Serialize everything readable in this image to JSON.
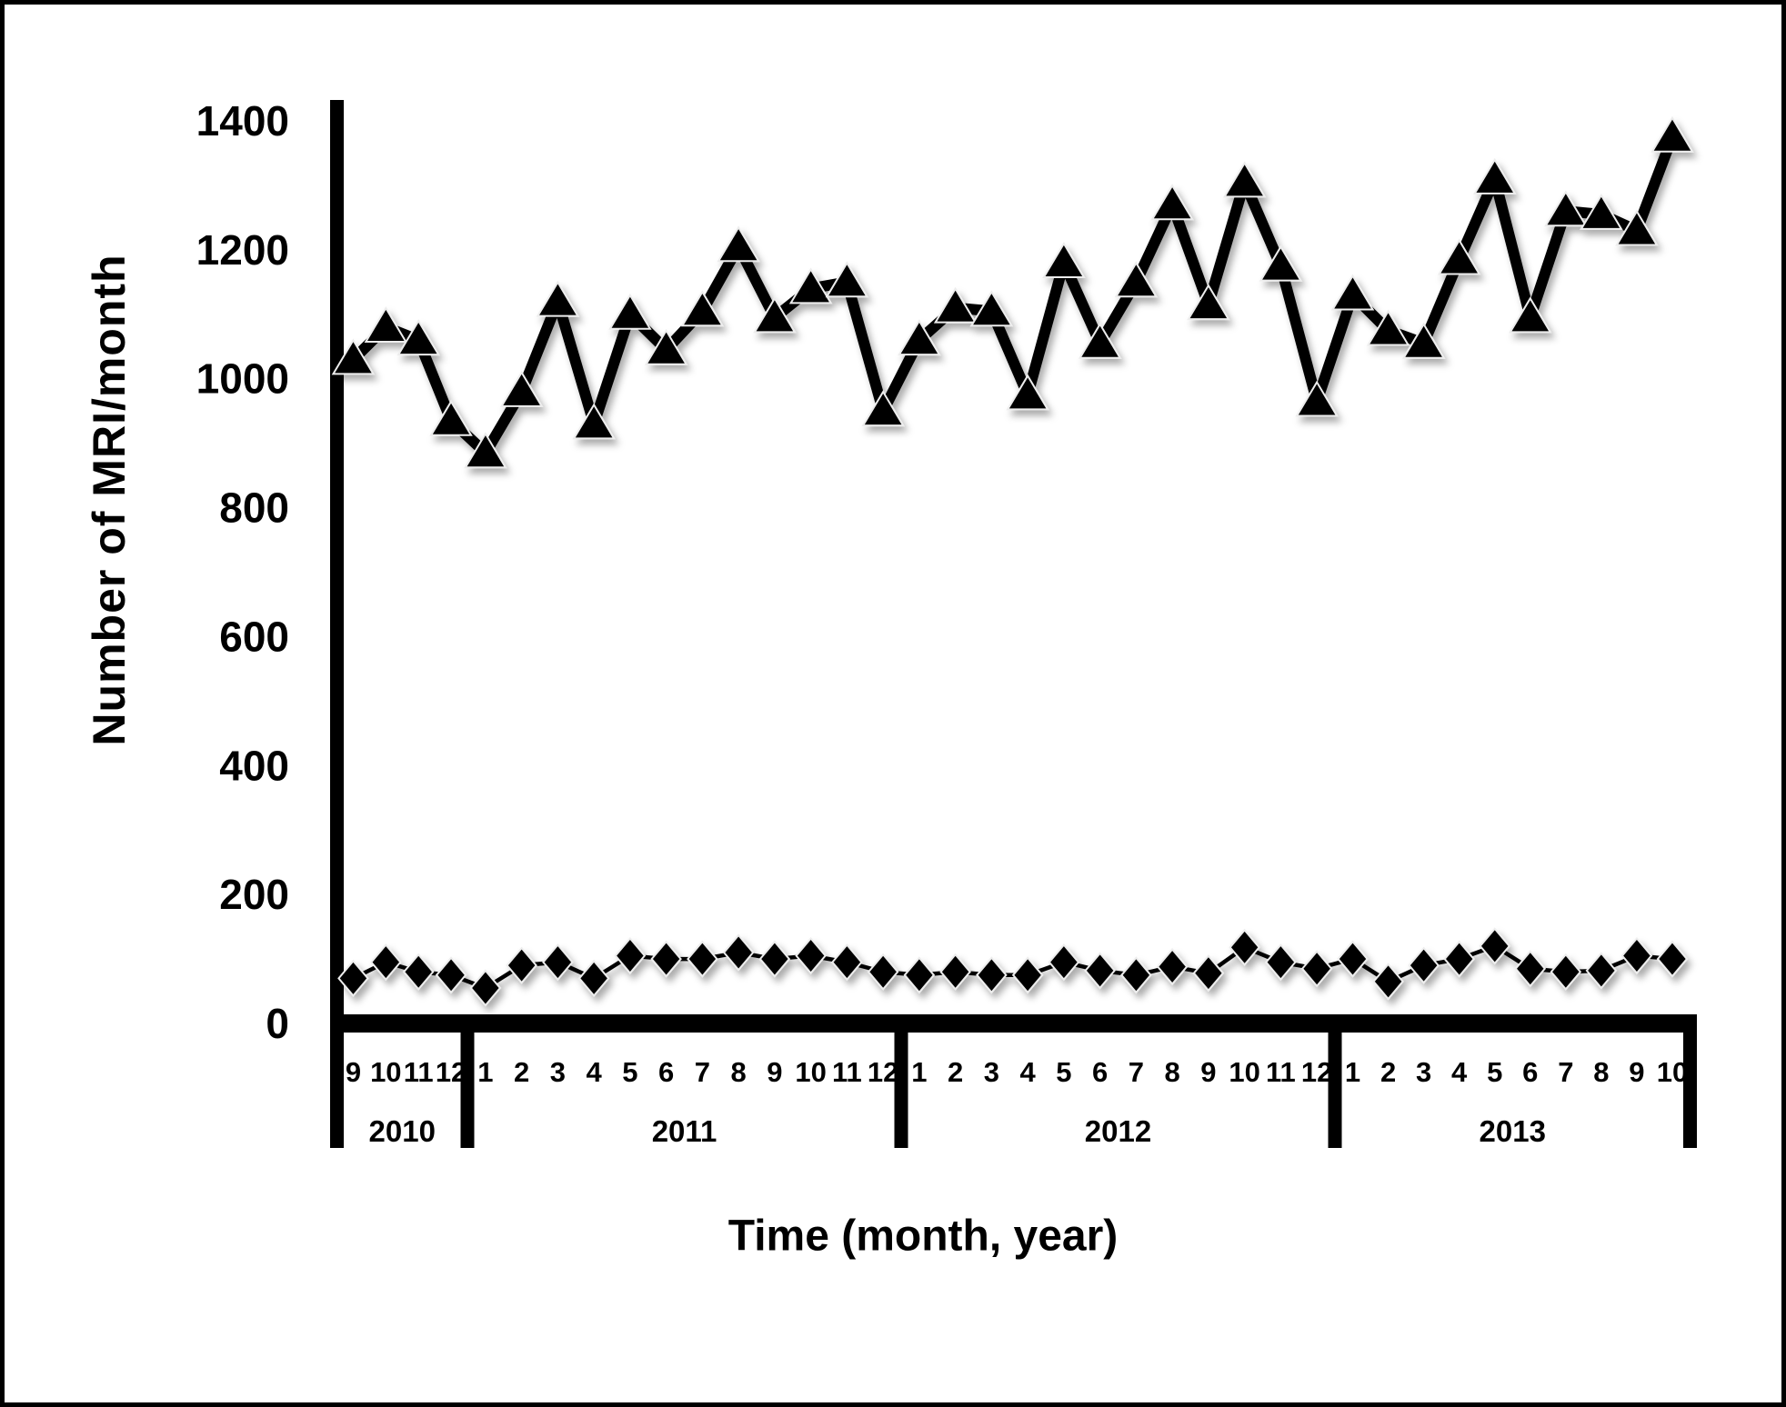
{
  "figure": {
    "y_axis_title": "Number of MRI/month",
    "x_axis_title": "Time (month, year)"
  },
  "chart_data": {
    "type": "line",
    "title": "",
    "ylabel": "Number of MRI/month",
    "xlabel": "Time (month, year)",
    "ylim": [
      0,
      1400
    ],
    "y_ticks": [
      1400,
      1200,
      1000,
      800,
      600,
      400,
      200,
      0
    ],
    "grid": false,
    "legend": "none",
    "x_groups": [
      {
        "year": "2010",
        "months": [
          "9",
          "10",
          "11",
          "12"
        ]
      },
      {
        "year": "2011",
        "months": [
          "1",
          "2",
          "3",
          "4",
          "5",
          "6",
          "7",
          "8",
          "9",
          "10",
          "11",
          "12"
        ]
      },
      {
        "year": "2012",
        "months": [
          "1",
          "2",
          "3",
          "4",
          "5",
          "6",
          "7",
          "8",
          "9",
          "10",
          "11",
          "12"
        ]
      },
      {
        "year": "2013",
        "months": [
          "1",
          "2",
          "3",
          "4",
          "5",
          "6",
          "7",
          "8",
          "9",
          "10"
        ]
      }
    ],
    "series": [
      {
        "name": "triangle_series",
        "marker": "triangle",
        "color": "#000000",
        "values": [
          1030,
          1080,
          1060,
          935,
          885,
          980,
          1120,
          930,
          1100,
          1045,
          1105,
          1205,
          1095,
          1140,
          1150,
          950,
          1060,
          1110,
          1105,
          975,
          1180,
          1055,
          1150,
          1270,
          1115,
          1305,
          1175,
          965,
          1130,
          1075,
          1055,
          1185,
          1310,
          1095,
          1260,
          1255,
          1230,
          1375
        ]
      },
      {
        "name": "diamond_series",
        "marker": "diamond",
        "color": "#000000",
        "values": [
          70,
          95,
          80,
          75,
          55,
          90,
          95,
          70,
          105,
          100,
          100,
          110,
          100,
          105,
          95,
          80,
          75,
          80,
          75,
          75,
          95,
          82,
          75,
          88,
          78,
          118,
          95,
          85,
          100,
          65,
          90,
          100,
          120,
          85,
          80,
          82,
          105,
          100
        ]
      }
    ]
  },
  "colors": {
    "background": "#ffffff",
    "frame": "#000000",
    "axis": "#000000"
  }
}
